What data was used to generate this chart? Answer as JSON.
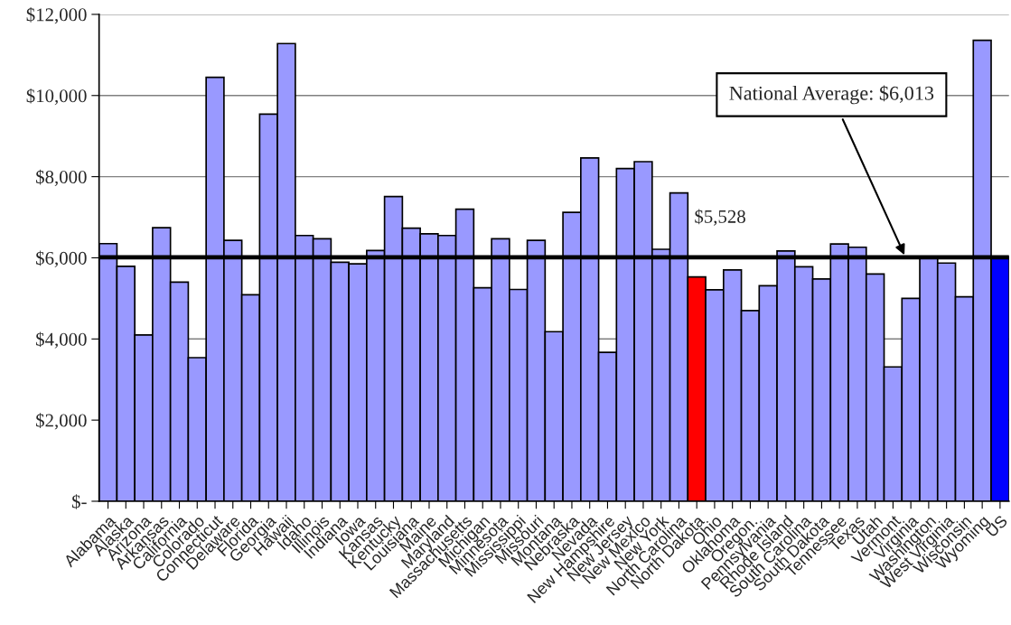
{
  "chart_data": {
    "type": "bar",
    "categories": [
      "Alabama",
      "Alaska",
      "Arizona",
      "Arkansas",
      "California",
      "Colorado",
      "Connecticut",
      "Delaware",
      "Florida",
      "Georgia",
      "Hawaii",
      "Idaho",
      "Illinois",
      "Indiana",
      "Iowa",
      "Kansas",
      "Kentucky",
      "Louisiana",
      "Maine",
      "Maryland",
      "Massachusetts",
      "Michigan",
      "Minnesota",
      "Mississippi",
      "Missouri",
      "Montana",
      "Nebraska",
      "Nevada",
      "New Hampshire",
      "New Jersey",
      "New Mexico",
      "New York",
      "North Carolina",
      "North Dakota",
      "Ohio",
      "Oklahoma",
      "Oregon.",
      "Pennsylvania",
      "Rhode Island",
      "South Carolina",
      "South Dakota",
      "Tennessee",
      "Texas",
      "Utah",
      "Vermont",
      "Virginia",
      "Washington",
      "West Virginia",
      "Wisconsin",
      "Wyoming",
      "US"
    ],
    "values": [
      6350,
      5790,
      4100,
      6740,
      5400,
      3540,
      10450,
      6430,
      5090,
      9540,
      11280,
      6550,
      6470,
      5890,
      5850,
      6180,
      7510,
      6730,
      6590,
      6550,
      7200,
      5260,
      6470,
      5220,
      6430,
      4180,
      7120,
      8460,
      3670,
      8200,
      8370,
      6210,
      7600,
      5528,
      5210,
      5700,
      4700,
      5310,
      6170,
      5780,
      5480,
      6340,
      6260,
      5600,
      3310,
      5000,
      6020,
      5870,
      5040,
      11360,
      6020
    ],
    "colors": [
      "#9999ff",
      "#9999ff",
      "#9999ff",
      "#9999ff",
      "#9999ff",
      "#9999ff",
      "#9999ff",
      "#9999ff",
      "#9999ff",
      "#9999ff",
      "#9999ff",
      "#9999ff",
      "#9999ff",
      "#9999ff",
      "#9999ff",
      "#9999ff",
      "#9999ff",
      "#9999ff",
      "#9999ff",
      "#9999ff",
      "#9999ff",
      "#9999ff",
      "#9999ff",
      "#9999ff",
      "#9999ff",
      "#9999ff",
      "#9999ff",
      "#9999ff",
      "#9999ff",
      "#9999ff",
      "#9999ff",
      "#9999ff",
      "#9999ff",
      "#ff0000",
      "#9999ff",
      "#9999ff",
      "#9999ff",
      "#9999ff",
      "#9999ff",
      "#9999ff",
      "#9999ff",
      "#9999ff",
      "#9999ff",
      "#9999ff",
      "#9999ff",
      "#9999ff",
      "#9999ff",
      "#9999ff",
      "#9999ff",
      "#9999ff",
      "#0000ff"
    ],
    "value_labels": [
      null,
      null,
      null,
      null,
      null,
      null,
      null,
      null,
      null,
      null,
      null,
      null,
      null,
      null,
      null,
      null,
      null,
      null,
      null,
      null,
      null,
      null,
      null,
      null,
      null,
      null,
      null,
      null,
      null,
      null,
      null,
      null,
      null,
      "$5,528",
      null,
      null,
      null,
      null,
      null,
      null,
      null,
      null,
      null,
      null,
      null,
      null,
      null,
      null,
      null,
      null,
      null
    ],
    "ylim": [
      0,
      12000
    ],
    "yticks": [
      {
        "value": 0,
        "label": "$-"
      },
      {
        "value": 2000,
        "label": "$2,000"
      },
      {
        "value": 4000,
        "label": "$4,000"
      },
      {
        "value": 6000,
        "label": "$6,000"
      },
      {
        "value": 8000,
        "label": "$8,000"
      },
      {
        "value": 10000,
        "label": "$10,000"
      },
      {
        "value": 12000,
        "label": "$12,000"
      }
    ],
    "ref_lines": [
      {
        "axis": "y",
        "value": 6013,
        "label": "National Average: $6,013",
        "color": "#000000"
      }
    ],
    "grid": "y",
    "legend": false
  }
}
